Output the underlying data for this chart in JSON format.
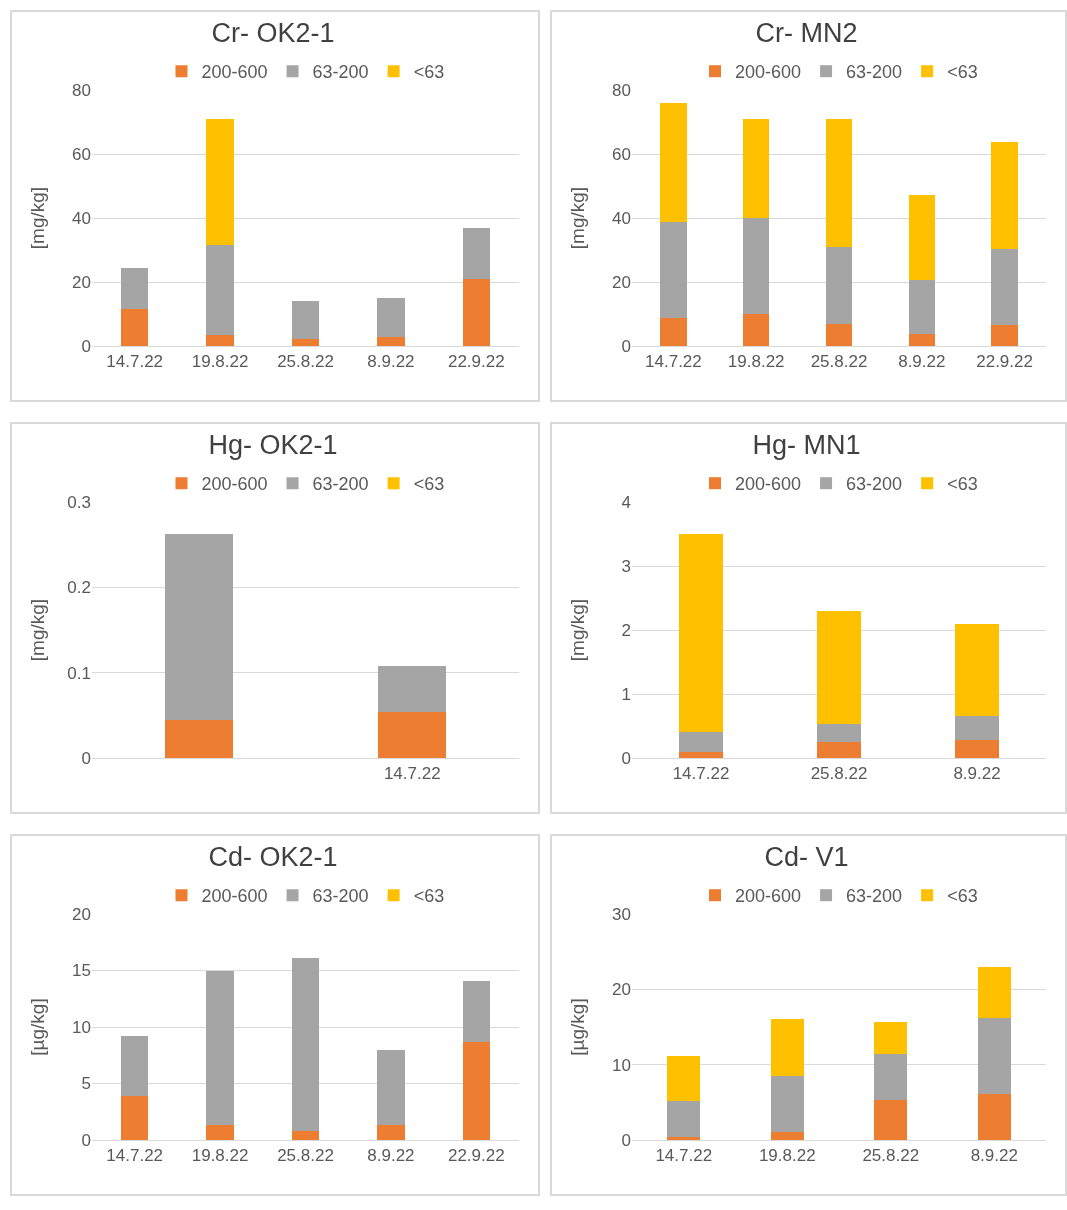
{
  "chart_data": [
    {
      "type": "bar",
      "title": "Cr- OK2-1",
      "ylabel": "[mg/kg]",
      "stacked": true,
      "grid": "y",
      "legend": "top",
      "categories": [
        "14.7.22",
        "19.8.22",
        "25.8.22",
        "8.9.22",
        "22.9.22"
      ],
      "ylim": [
        0,
        80
      ],
      "yticks": [
        0,
        20,
        40,
        60,
        80
      ],
      "series": [
        {
          "name": "200-600",
          "color": "#ed7d31",
          "values": [
            11.5,
            3.3,
            2.2,
            2.8,
            20.8
          ]
        },
        {
          "name": "63-200",
          "color": "#a5a5a5",
          "values": [
            13,
            28.3,
            12,
            12.1,
            16.2
          ]
        },
        {
          "name": "<63",
          "color": "#ffc000",
          "values": [
            0,
            39.3,
            0,
            0,
            0
          ]
        }
      ]
    },
    {
      "type": "bar",
      "title": "Cr- MN2",
      "ylabel": "[mg/kg]",
      "stacked": true,
      "grid": "y",
      "legend": "top",
      "categories": [
        "14.7.22",
        "19.8.22",
        "25.8.22",
        "8.9.22",
        "22.9.22"
      ],
      "ylim": [
        0,
        80
      ],
      "yticks": [
        0,
        20,
        40,
        60,
        80
      ],
      "series": [
        {
          "name": "200-600",
          "color": "#ed7d31",
          "values": [
            8.6,
            9.9,
            6.9,
            3.9,
            6.6
          ]
        },
        {
          "name": "63-200",
          "color": "#a5a5a5",
          "values": [
            30,
            30,
            23.9,
            16.7,
            23.7
          ]
        },
        {
          "name": "<63",
          "color": "#ffc000",
          "values": [
            37.3,
            31,
            40.1,
            26.7,
            33.6
          ]
        }
      ]
    },
    {
      "type": "bar",
      "title": "Hg- OK2-1",
      "ylabel": "[mg/kg]",
      "stacked": true,
      "grid": "y",
      "legend": "top",
      "categories": [
        null,
        "14.7.22"
      ],
      "ylim": [
        0,
        0.3
      ],
      "yticks": [
        0,
        0.1,
        0.2,
        0.3
      ],
      "series": [
        {
          "name": "200-600",
          "color": "#ed7d31",
          "values": [
            0.045,
            0.054
          ]
        },
        {
          "name": "63-200",
          "color": "#a5a5a5",
          "values": [
            0.218,
            0.054
          ]
        },
        {
          "name": "<63",
          "color": "#ffc000",
          "values": [
            0,
            0
          ]
        }
      ]
    },
    {
      "type": "bar",
      "title": "Hg- MN1",
      "ylabel": "[mg/kg]",
      "stacked": true,
      "grid": "y",
      "legend": "top",
      "categories": [
        "14.7.22",
        "25.8.22",
        "8.9.22"
      ],
      "ylim": [
        0,
        4
      ],
      "yticks": [
        0,
        1,
        2,
        3,
        4
      ],
      "series": [
        {
          "name": "200-600",
          "color": "#ed7d31",
          "values": [
            0.09,
            0.25,
            0.28
          ]
        },
        {
          "name": "63-200",
          "color": "#a5a5a5",
          "values": [
            0.32,
            0.28,
            0.37
          ]
        },
        {
          "name": "<63",
          "color": "#ffc000",
          "values": [
            3.09,
            1.77,
            1.44
          ]
        }
      ]
    },
    {
      "type": "bar",
      "title": "Cd- OK2-1",
      "ylabel": "[µg/kg]",
      "stacked": true,
      "grid": "y",
      "legend": "top",
      "categories": [
        "14.7.22",
        "19.8.22",
        "25.8.22",
        "8.9.22",
        "22.9.22"
      ],
      "ylim": [
        0,
        20
      ],
      "yticks": [
        0,
        5,
        10,
        15,
        20
      ],
      "series": [
        {
          "name": "200-600",
          "color": "#ed7d31",
          "values": [
            3.9,
            1.3,
            0.8,
            1.3,
            8.7
          ]
        },
        {
          "name": "63-200",
          "color": "#a5a5a5",
          "values": [
            5.3,
            13.7,
            15.3,
            6.7,
            5.4
          ]
        },
        {
          "name": "<63",
          "color": "#ffc000",
          "values": [
            0,
            0,
            0,
            0,
            0
          ]
        }
      ]
    },
    {
      "type": "bar",
      "title": "Cd- V1",
      "ylabel": "[µg/kg]",
      "stacked": true,
      "grid": "y",
      "legend": "top",
      "categories": [
        "14.7.22",
        "19.8.22",
        "25.8.22",
        "8.9.22"
      ],
      "ylim": [
        0,
        30
      ],
      "yticks": [
        0,
        10,
        20,
        30
      ],
      "series": [
        {
          "name": "200-600",
          "color": "#ed7d31",
          "values": [
            0.4,
            1,
            5.3,
            6.1
          ]
        },
        {
          "name": "63-200",
          "color": "#a5a5a5",
          "values": [
            4.8,
            7.5,
            6.1,
            10.1
          ]
        },
        {
          "name": "<63",
          "color": "#ffc000",
          "values": [
            5.9,
            7.6,
            4.3,
            6.8
          ]
        }
      ]
    }
  ]
}
